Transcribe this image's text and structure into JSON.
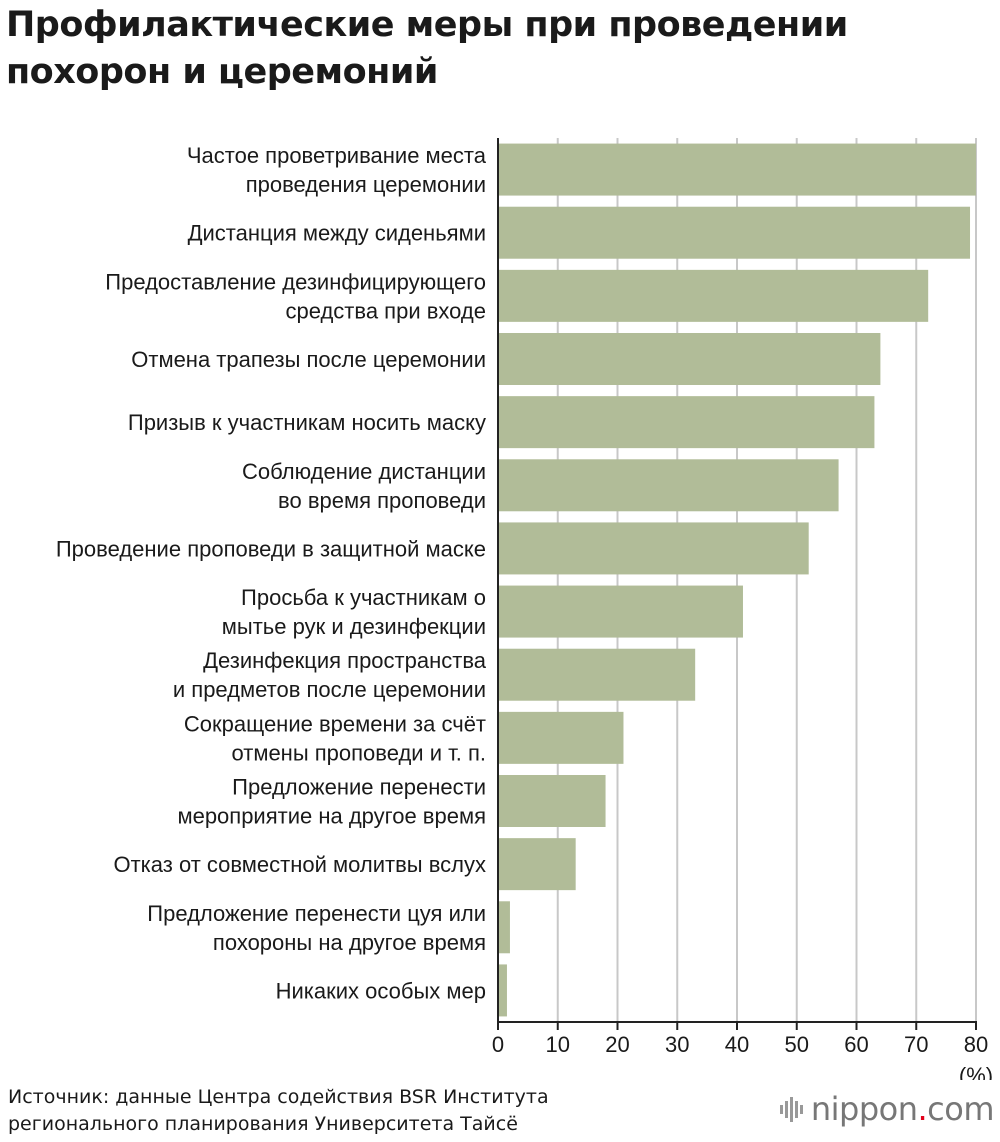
{
  "title": "Профилактические меры при проведении\nпохорон и церемоний",
  "source": "Источник: данные Центра содействия BSR Института\nрегионального планирования Университета Тайсё",
  "logo": {
    "name": "nippon",
    "dot": ".",
    "suffix": "com"
  },
  "colors": {
    "bar": "#b1bc98",
    "grid": "#c8c8c8",
    "axis": "#222222",
    "text": "#1a1a1a",
    "logo_dot": "#e2001a"
  },
  "chart_data": {
    "type": "bar",
    "orientation": "horizontal",
    "title": "Профилактические меры при проведении похорон и церемоний",
    "xlabel": "(%)",
    "xlim": [
      0,
      80
    ],
    "xticks": [
      "0",
      "10",
      "20",
      "30",
      "40",
      "50",
      "60",
      "70",
      "80"
    ],
    "grid": true,
    "categories": [
      [
        "Частое проветривание места",
        "проведения церемонии"
      ],
      [
        "Дистанция между сиденьями"
      ],
      [
        "Предоставление дезинфицирующего",
        "средства при входе"
      ],
      [
        "Отмена трапезы после церемонии"
      ],
      [
        "Призыв к участникам носить маску"
      ],
      [
        "Соблюдение дистанции",
        "во время проповеди"
      ],
      [
        "Проведение проповеди в защитной маске"
      ],
      [
        "Просьба к участникам о",
        "мытье рук и дезинфекции"
      ],
      [
        "Дезинфекция пространства",
        "и предметов после церемонии"
      ],
      [
        "Сокращение времени за счёт",
        "отмены проповеди и т. п."
      ],
      [
        "Предложение перенести",
        "мероприятие на другое время"
      ],
      [
        "Отказ от совместной молитвы вслух"
      ],
      [
        "Предложение перенести цуя или",
        "похороны на другое время"
      ],
      [
        "Никаких особых мер"
      ]
    ],
    "values": [
      80,
      79,
      72,
      64,
      63,
      57,
      52,
      41,
      33,
      21,
      18,
      13,
      2,
      1.5
    ]
  }
}
